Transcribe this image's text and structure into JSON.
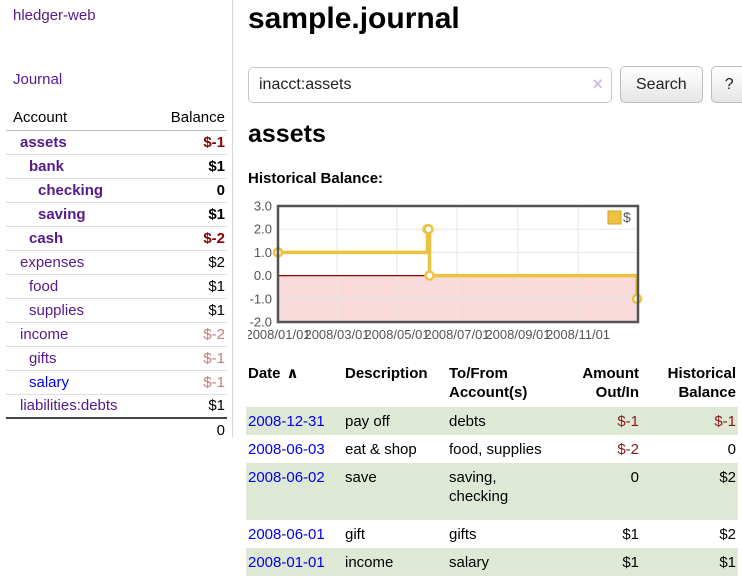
{
  "app": {
    "brand": "hledger-web",
    "nav": {
      "journal": "Journal"
    }
  },
  "sidebar": {
    "header": {
      "account": "Account",
      "balance": "Balance"
    },
    "accounts": [
      {
        "name": "assets",
        "balance": "$-1"
      },
      {
        "name": "bank",
        "balance": "$1"
      },
      {
        "name": "checking",
        "balance": "0"
      },
      {
        "name": "saving",
        "balance": "$1"
      },
      {
        "name": "cash",
        "balance": "$-2"
      },
      {
        "name": "expenses",
        "balance": "$2"
      },
      {
        "name": "food",
        "balance": "$1"
      },
      {
        "name": "supplies",
        "balance": "$1"
      },
      {
        "name": "income",
        "balance": "$-2"
      },
      {
        "name": "gifts",
        "balance": "$-1"
      },
      {
        "name": "salary",
        "balance": "$-1"
      },
      {
        "name": "liabilities:debts",
        "balance": "$1"
      }
    ],
    "total": "0"
  },
  "main": {
    "title": "sample.journal",
    "search": {
      "value": "inacct:assets",
      "clear": "×",
      "submit": "Search",
      "help": "?"
    },
    "account_heading": "assets",
    "section_label": "Historical Balance:"
  },
  "register": {
    "headers": {
      "date": "Date",
      "sort_indicator": "∧",
      "description": "Description",
      "tofrom": "To/From Account(s)",
      "amount": "Amount Out/In",
      "historical": "Historical Balance"
    },
    "rows": [
      {
        "date": "2008-12-31",
        "description": "pay off",
        "accounts": "debts",
        "amount": "$-1",
        "balance": "$-1"
      },
      {
        "date": "2008-06-03",
        "description": "eat & shop",
        "accounts": "food, supplies",
        "amount": "$-2",
        "balance": "0"
      },
      {
        "date": "2008-06-02",
        "description": "save",
        "accounts": "saving,\nchecking",
        "amount": "0",
        "balance": "$2"
      },
      {
        "date": "2008-06-01",
        "description": "gift",
        "accounts": "gifts",
        "amount": "$1",
        "balance": "$2"
      },
      {
        "date": "2008-01-01",
        "description": "income",
        "accounts": "salary",
        "amount": "$1",
        "balance": "$1"
      }
    ]
  },
  "chart_data": {
    "type": "line",
    "line_style": "steps",
    "title": "Historical Balance",
    "series": [
      {
        "name": "$",
        "color": "#edc240",
        "points": [
          [
            "2008-01-01",
            1
          ],
          [
            "2008-06-01",
            2
          ],
          [
            "2008-06-02",
            2
          ],
          [
            "2008-06-03",
            0
          ],
          [
            "2008-12-31",
            -1
          ]
        ]
      }
    ],
    "xlim": [
      "2008-01-01",
      "2009-01-01"
    ],
    "ylim": [
      -2,
      3
    ],
    "y_ticks": [
      "3.0",
      "2.0",
      "1.0",
      "0.0",
      "-1.0",
      "-2.0"
    ],
    "x_ticks": [
      "2008/01/01",
      "2008/03/01",
      "2008/05/01",
      "2008/07/01",
      "2008/09/01",
      "2008/11/01"
    ],
    "grid": true,
    "legend": {
      "label": "$",
      "position": "top-right"
    },
    "negative_region_fill": "#f9dada",
    "zero_line_color": "#8b0000",
    "grid_color": "#e6e6e6",
    "border_color": "#545454",
    "axis_text_color": "#545454",
    "marker_fill": "#ffffff"
  }
}
